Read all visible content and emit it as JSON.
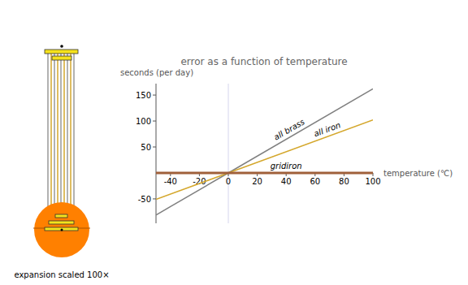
{
  "chart_data": {
    "type": "line",
    "title": "error as a function of temperature",
    "y_label": "seconds (per day)",
    "x_label": "temperature (℃)",
    "x": [
      -50,
      0,
      100
    ],
    "series": [
      {
        "name": "all brass",
        "color": "#808080",
        "values": [
          -81,
          0,
          162
        ]
      },
      {
        "name": "all iron",
        "color": "#d4a72c",
        "values": [
          -51,
          0,
          102
        ]
      },
      {
        "name": "gridiron",
        "color": "#a0603a",
        "values": [
          0,
          0,
          0
        ]
      }
    ],
    "xlim": [
      -50,
      100
    ],
    "ylim": [
      -97,
      172
    ],
    "xticks": [
      -40,
      -20,
      0,
      20,
      40,
      60,
      80,
      100
    ],
    "yticks": [
      -50,
      50,
      100,
      150
    ],
    "reference_x": 0,
    "grid": false
  },
  "diagram": {
    "caption": "expansion scaled 100×"
  }
}
